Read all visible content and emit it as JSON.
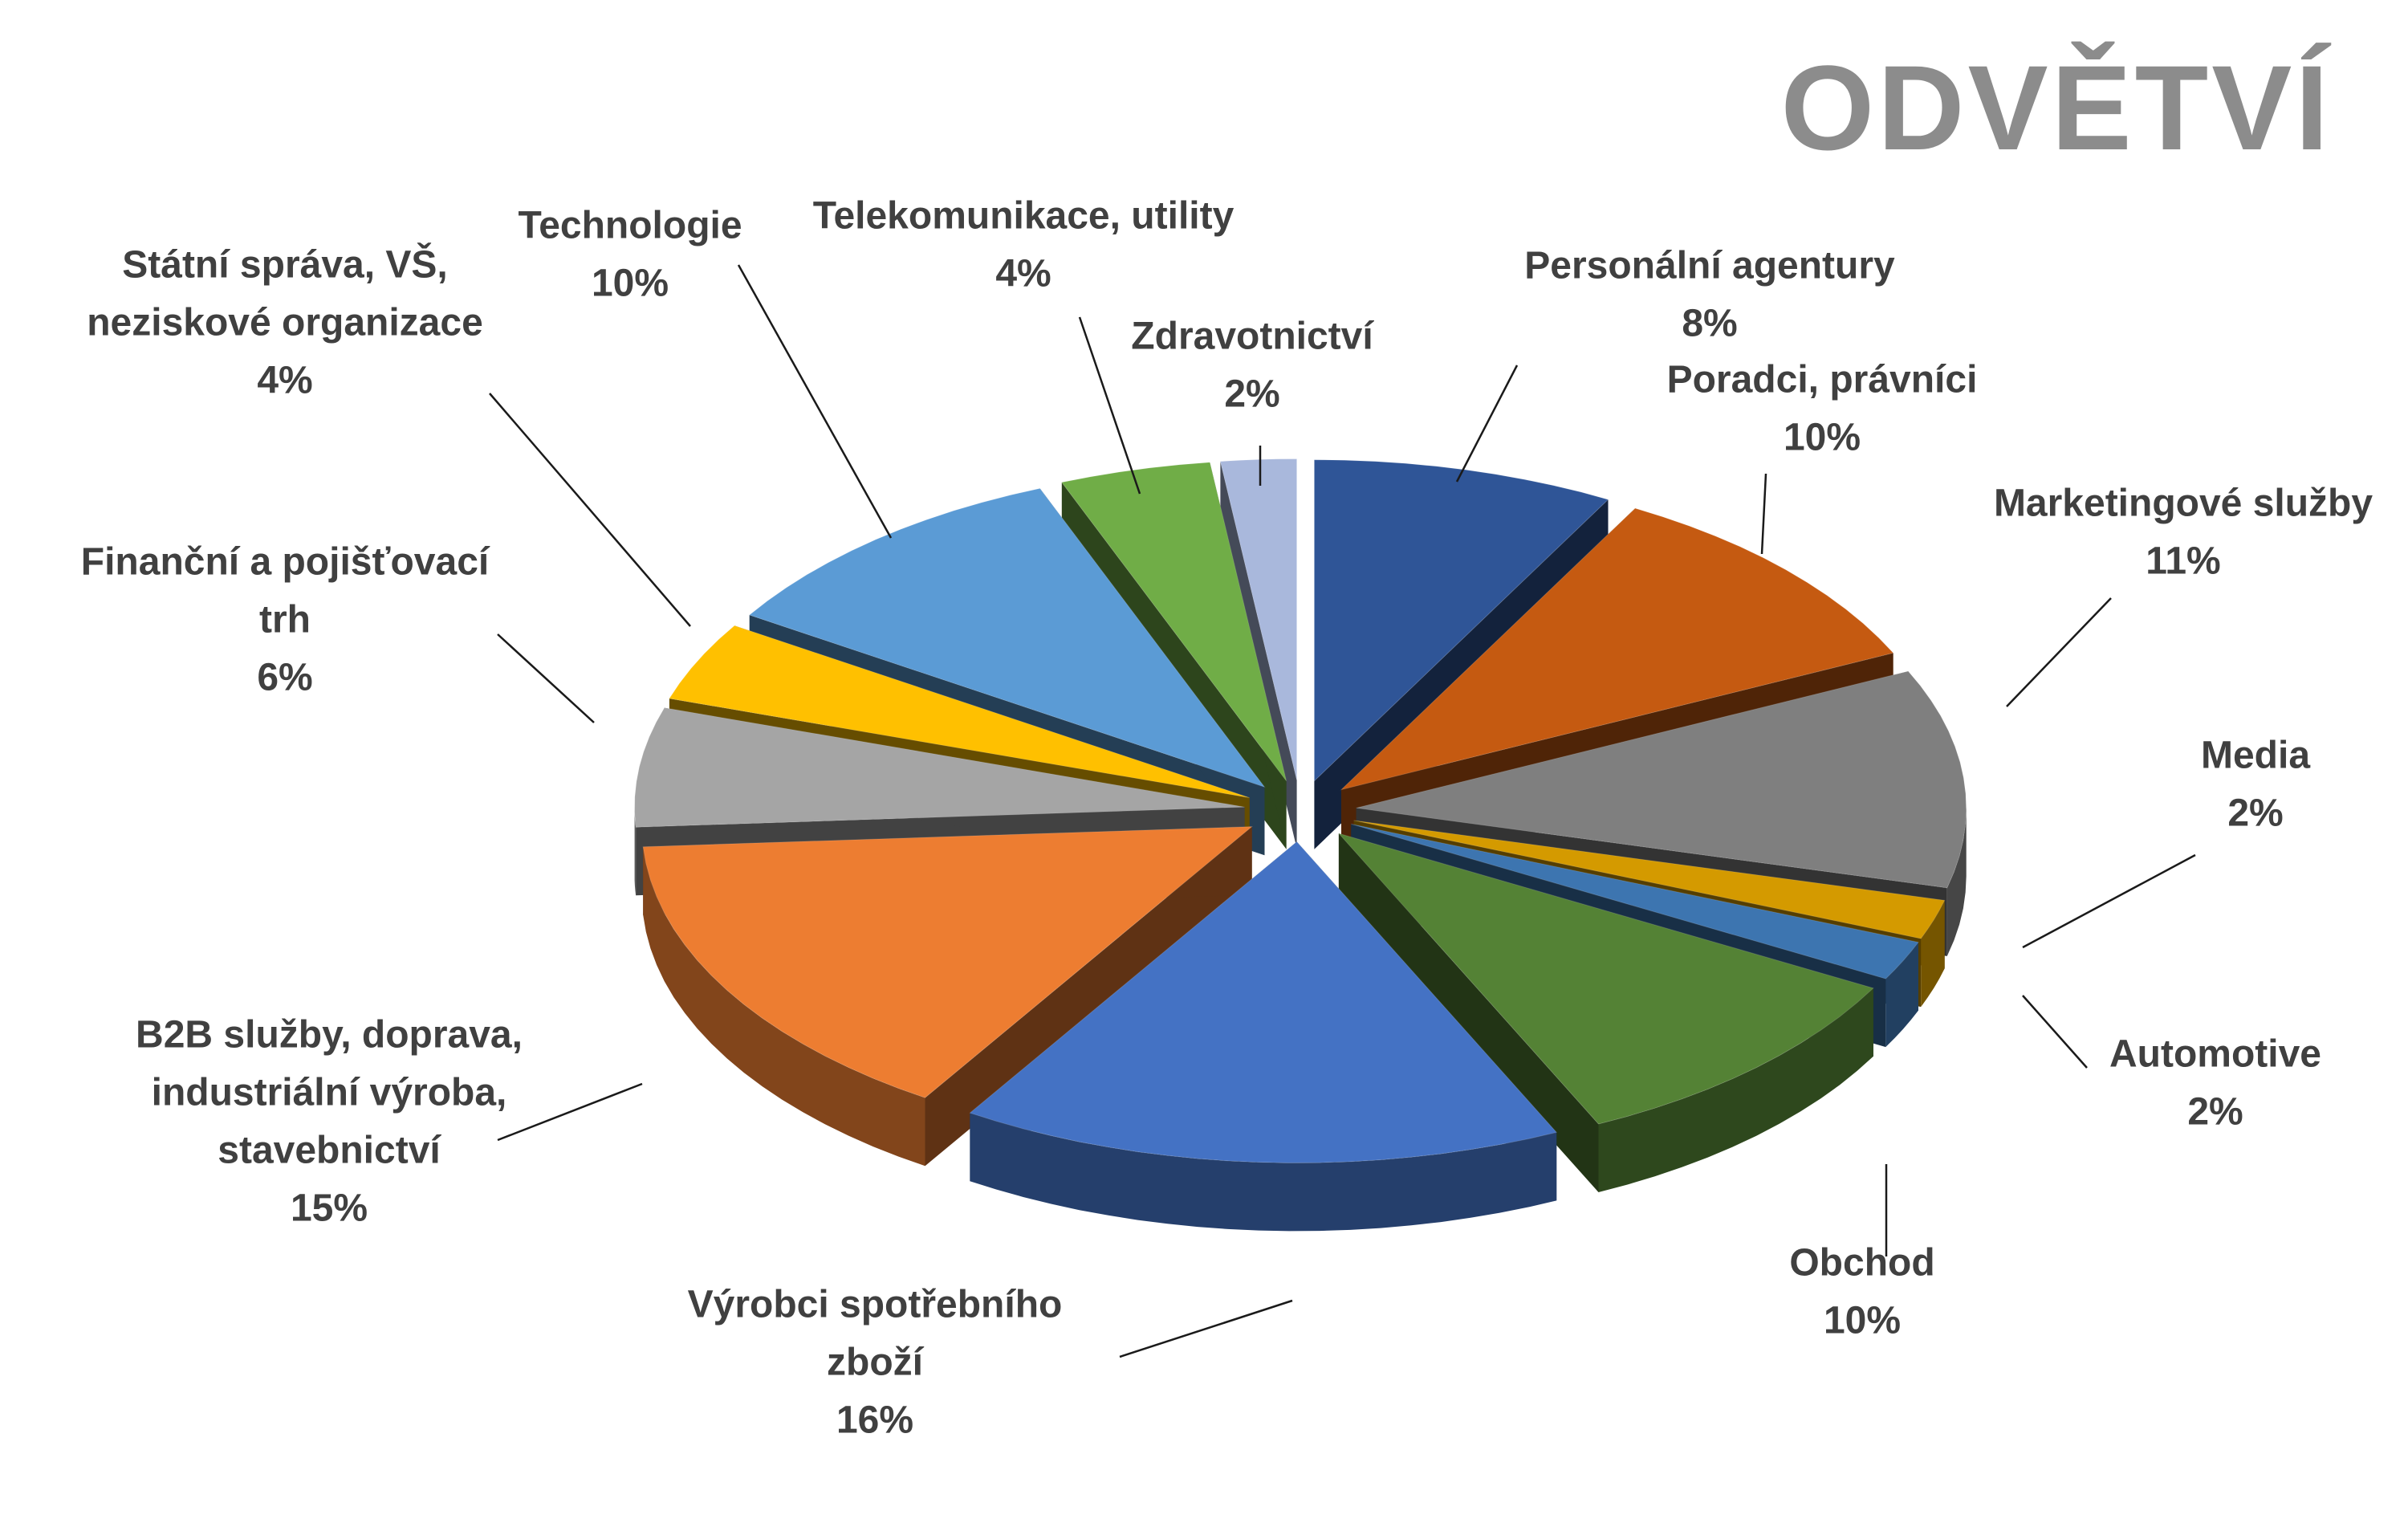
{
  "title": "ODVĚTVÍ",
  "chart_data": {
    "type": "pie",
    "style": "3d-exploded",
    "title": "ODVĚTVÍ",
    "slices": [
      {
        "label": [
          "Personální agentury",
          "8%"
        ],
        "value": 8,
        "color": "#2f5597"
      },
      {
        "label": [
          "Poradci, právníci",
          "10%"
        ],
        "value": 10,
        "color": "#c55a11"
      },
      {
        "label": [
          "Marketingové služby",
          "11%"
        ],
        "value": 11,
        "color": "#7f7f7f"
      },
      {
        "label": [
          "Media",
          "2%"
        ],
        "value": 2,
        "color": "#d49a00"
      },
      {
        "label": [
          "Automotive",
          "2%"
        ],
        "value": 2,
        "color": "#3d75b0"
      },
      {
        "label": [
          "Obchod",
          "10%"
        ],
        "value": 10,
        "color": "#548235"
      },
      {
        "label": [
          "Výrobci spotřebního",
          "zboží",
          "16%"
        ],
        "value": 16,
        "color": "#4472c4"
      },
      {
        "label": [
          "B2B služby, doprava,",
          "industriální výroba,",
          "stavebnictví",
          "15%"
        ],
        "value": 15,
        "color": "#ed7d31"
      },
      {
        "label": [
          "Finanční a pojišťovací",
          "trh",
          "6%"
        ],
        "value": 6,
        "color": "#a5a5a5"
      },
      {
        "label": [
          "Státní správa, VŠ,",
          "neziskové organizace",
          "4%"
        ],
        "value": 4,
        "color": "#ffc000"
      },
      {
        "label": [
          "Technologie",
          "10%"
        ],
        "value": 10,
        "color": "#5b9bd5"
      },
      {
        "label": [
          "Telekomunikace, utility",
          "4%"
        ],
        "value": 4,
        "color": "#70ad47"
      },
      {
        "label": [
          "Zdravotnictví",
          "2%"
        ],
        "value": 2,
        "color": "#a9b8dc"
      }
    ]
  }
}
